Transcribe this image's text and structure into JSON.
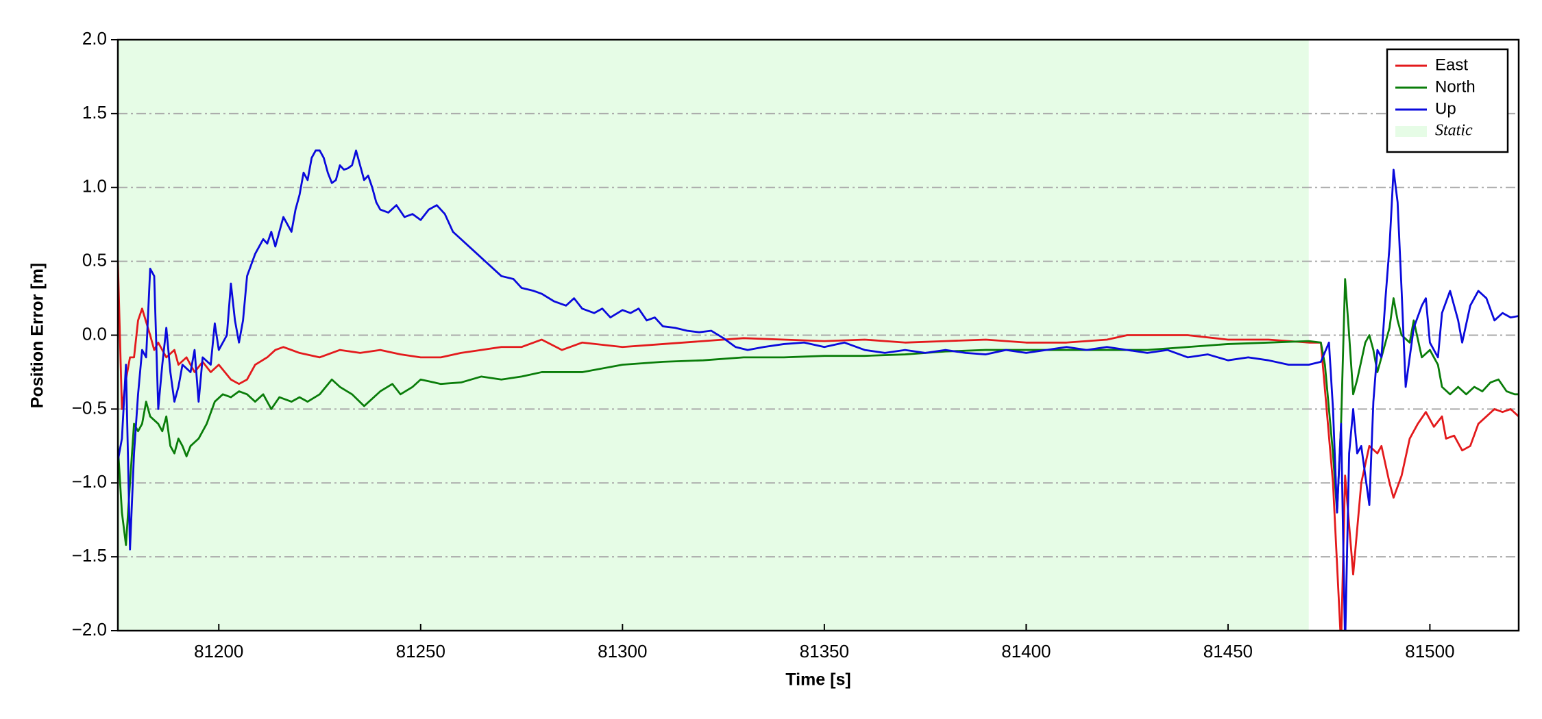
{
  "chart_data": {
    "type": "line",
    "x_label": "Time [s]",
    "y_label": "Position Error [m]",
    "xlim": [
      81175,
      81522
    ],
    "ylim": [
      -2,
      2
    ],
    "xticks": [
      81200,
      81250,
      81300,
      81350,
      81400,
      81450,
      81500
    ],
    "yticks": [
      {
        "value": -2,
        "label": "−2.0"
      },
      {
        "value": -1.5,
        "label": "−1.5"
      },
      {
        "value": -1,
        "label": "−1.0"
      },
      {
        "value": -0.5,
        "label": "−0.5"
      },
      {
        "value": 0,
        "label": "0.0"
      },
      0.5,
      {
        "value": 1,
        "label": "1.0"
      },
      1.5,
      {
        "value": 2,
        "label": "2.0"
      }
    ],
    "grid": true,
    "legend": "upper right",
    "span": {
      "name": "Static",
      "color": "#e6fce6",
      "x": [
        81175,
        81470
      ]
    },
    "series": [
      {
        "name": "East",
        "color": "#e31a1c",
        "x": [
          81175,
          81176,
          81177,
          81178,
          81179,
          81180,
          81181,
          81183,
          81184,
          81185,
          81187,
          81189,
          81190,
          81192,
          81194,
          81196,
          81198,
          81200,
          81203,
          81205,
          81207,
          81209,
          81212,
          81214,
          81216,
          81220,
          81225,
          81230,
          81235,
          81240,
          81245,
          81250,
          81255,
          81260,
          81265,
          81270,
          81275,
          81280,
          81285,
          81290,
          81300,
          81310,
          81320,
          81330,
          81340,
          81350,
          81360,
          81370,
          81380,
          81390,
          81400,
          81410,
          81420,
          81425,
          81430,
          81440,
          81450,
          81460,
          81470,
          81473,
          81476,
          81478,
          81479,
          81481,
          81483,
          81485,
          81487,
          81488,
          81490,
          81491,
          81493,
          81495,
          81497,
          81499,
          81501,
          81503,
          81504,
          81506,
          81508,
          81510,
          81512,
          81514,
          81516,
          81518,
          81520,
          81522
        ],
        "values": [
          0.5,
          -0.5,
          -0.3,
          -0.15,
          -0.15,
          0.1,
          0.18,
          0.0,
          -0.1,
          -0.05,
          -0.15,
          -0.1,
          -0.2,
          -0.15,
          -0.25,
          -0.18,
          -0.25,
          -0.2,
          -0.3,
          -0.33,
          -0.3,
          -0.2,
          -0.15,
          -0.1,
          -0.08,
          -0.12,
          -0.15,
          -0.1,
          -0.12,
          -0.1,
          -0.13,
          -0.15,
          -0.15,
          -0.12,
          -0.1,
          -0.08,
          -0.08,
          -0.03,
          -0.1,
          -0.05,
          -0.08,
          -0.06,
          -0.04,
          -0.02,
          -0.03,
          -0.04,
          -0.03,
          -0.05,
          -0.04,
          -0.03,
          -0.05,
          -0.05,
          -0.03,
          0.0,
          0.0,
          0.0,
          -0.03,
          -0.03,
          -0.05,
          -0.05,
          -1.0,
          -2.1,
          -0.95,
          -1.62,
          -1.0,
          -0.75,
          -0.8,
          -0.75,
          -1.0,
          -1.1,
          -0.95,
          -0.7,
          -0.6,
          -0.52,
          -0.62,
          -0.55,
          -0.7,
          -0.68,
          -0.78,
          -0.75,
          -0.6,
          -0.55,
          -0.5,
          -0.52,
          -0.5,
          -0.55
        ]
      },
      {
        "name": "North",
        "color": "#0a7d0a",
        "x": [
          81175,
          81176,
          81177,
          81178,
          81179,
          81180,
          81181,
          81182,
          81183,
          81185,
          81186,
          81187,
          81188,
          81189,
          81190,
          81191,
          81192,
          81193,
          81195,
          81197,
          81199,
          81201,
          81203,
          81205,
          81207,
          81209,
          81211,
          81213,
          81215,
          81218,
          81220,
          81222,
          81225,
          81228,
          81230,
          81233,
          81236,
          81240,
          81243,
          81245,
          81248,
          81250,
          81255,
          81260,
          81265,
          81270,
          81275,
          81280,
          81290,
          81300,
          81310,
          81320,
          81330,
          81340,
          81350,
          81360,
          81370,
          81380,
          81390,
          81400,
          81410,
          81420,
          81430,
          81440,
          81450,
          81460,
          81470,
          81473,
          81474,
          81476,
          81477,
          81478,
          81479,
          81480,
          81481,
          81482,
          81484,
          81485,
          81486,
          81487,
          81488,
          81490,
          81491,
          81492,
          81493,
          81495,
          81496,
          81498,
          81500,
          81502,
          81503,
          81505,
          81507,
          81509,
          81511,
          81513,
          81515,
          81517,
          81519,
          81521,
          81522
        ],
        "values": [
          -0.75,
          -1.2,
          -1.42,
          -1.0,
          -0.6,
          -0.65,
          -0.6,
          -0.45,
          -0.55,
          -0.6,
          -0.65,
          -0.55,
          -0.75,
          -0.8,
          -0.7,
          -0.75,
          -0.82,
          -0.75,
          -0.7,
          -0.6,
          -0.45,
          -0.4,
          -0.42,
          -0.38,
          -0.4,
          -0.45,
          -0.4,
          -0.5,
          -0.42,
          -0.45,
          -0.42,
          -0.45,
          -0.4,
          -0.3,
          -0.35,
          -0.4,
          -0.48,
          -0.38,
          -0.33,
          -0.4,
          -0.35,
          -0.3,
          -0.33,
          -0.32,
          -0.28,
          -0.3,
          -0.28,
          -0.25,
          -0.25,
          -0.2,
          -0.18,
          -0.17,
          -0.15,
          -0.15,
          -0.14,
          -0.14,
          -0.13,
          -0.11,
          -0.1,
          -0.1,
          -0.1,
          -0.1,
          -0.1,
          -0.08,
          -0.06,
          -0.05,
          -0.04,
          -0.05,
          -0.2,
          -0.8,
          -1.2,
          -0.6,
          0.38,
          0.0,
          -0.4,
          -0.3,
          -0.05,
          0.0,
          -0.1,
          -0.25,
          -0.15,
          0.05,
          0.25,
          0.1,
          0.0,
          -0.05,
          0.1,
          -0.15,
          -0.1,
          -0.2,
          -0.35,
          -0.4,
          -0.35,
          -0.4,
          -0.35,
          -0.38,
          -0.32,
          -0.3,
          -0.38,
          -0.4,
          -0.4
        ]
      },
      {
        "name": "Up",
        "color": "#0a0adc",
        "x": [
          81175,
          81176,
          81177,
          81178,
          81179,
          81180,
          81181,
          81182,
          81183,
          81184,
          81185,
          81186,
          81187,
          81188,
          81189,
          81190,
          81191,
          81193,
          81194,
          81195,
          81196,
          81198,
          81199,
          81200,
          81202,
          81203,
          81204,
          81205,
          81206,
          81207,
          81209,
          81211,
          81212,
          81213,
          81214,
          81216,
          81218,
          81219,
          81220,
          81221,
          81222,
          81223,
          81224,
          81225,
          81226,
          81227,
          81228,
          81229,
          81230,
          81231,
          81232,
          81233,
          81234,
          81235,
          81236,
          81237,
          81238,
          81239,
          81240,
          81242,
          81244,
          81246,
          81248,
          81250,
          81252,
          81254,
          81256,
          81258,
          81260,
          81262,
          81264,
          81266,
          81268,
          81270,
          81273,
          81275,
          81278,
          81280,
          81283,
          81286,
          81288,
          81290,
          81293,
          81295,
          81297,
          81300,
          81302,
          81304,
          81306,
          81308,
          81310,
          81313,
          81316,
          81319,
          81322,
          81325,
          81328,
          81331,
          81335,
          81340,
          81345,
          81350,
          81355,
          81360,
          81365,
          81370,
          81375,
          81380,
          81385,
          81390,
          81395,
          81400,
          81405,
          81410,
          81415,
          81420,
          81425,
          81430,
          81435,
          81440,
          81445,
          81450,
          81455,
          81460,
          81465,
          81470,
          81473,
          81475,
          81476,
          81477,
          81478,
          81479,
          81480,
          81481,
          81482,
          81483,
          81484,
          81485,
          81486,
          81487,
          81488,
          81489,
          81490,
          81491,
          81492,
          81493,
          81494,
          81495,
          81496,
          81498,
          81499,
          81500,
          81502,
          81503,
          81505,
          81507,
          81508,
          81510,
          81512,
          81514,
          81516,
          81518,
          81520,
          81522
        ],
        "values": [
          -0.85,
          -0.7,
          -0.2,
          -1.45,
          -0.8,
          -0.4,
          -0.1,
          -0.15,
          0.45,
          0.4,
          -0.5,
          -0.2,
          0.05,
          -0.25,
          -0.45,
          -0.35,
          -0.2,
          -0.25,
          -0.1,
          -0.45,
          -0.15,
          -0.2,
          0.08,
          -0.1,
          0.0,
          0.35,
          0.1,
          -0.05,
          0.1,
          0.4,
          0.55,
          0.65,
          0.62,
          0.7,
          0.6,
          0.8,
          0.7,
          0.85,
          0.95,
          1.1,
          1.05,
          1.2,
          1.25,
          1.25,
          1.2,
          1.1,
          1.03,
          1.05,
          1.15,
          1.12,
          1.13,
          1.15,
          1.25,
          1.15,
          1.05,
          1.08,
          1.0,
          0.9,
          0.85,
          0.83,
          0.88,
          0.8,
          0.82,
          0.78,
          0.85,
          0.88,
          0.82,
          0.7,
          0.65,
          0.6,
          0.55,
          0.5,
          0.45,
          0.4,
          0.38,
          0.32,
          0.3,
          0.28,
          0.23,
          0.2,
          0.25,
          0.18,
          0.15,
          0.18,
          0.12,
          0.17,
          0.15,
          0.18,
          0.1,
          0.12,
          0.06,
          0.05,
          0.03,
          0.02,
          0.03,
          -0.02,
          -0.08,
          -0.1,
          -0.08,
          -0.06,
          -0.05,
          -0.08,
          -0.05,
          -0.1,
          -0.12,
          -0.1,
          -0.12,
          -0.1,
          -0.12,
          -0.13,
          -0.1,
          -0.12,
          -0.1,
          -0.08,
          -0.1,
          -0.08,
          -0.1,
          -0.12,
          -0.1,
          -0.15,
          -0.13,
          -0.17,
          -0.15,
          -0.17,
          -0.2,
          -0.2,
          -0.18,
          -0.05,
          -0.5,
          -1.2,
          -0.6,
          -2.1,
          -0.8,
          -0.5,
          -0.8,
          -0.75,
          -0.95,
          -1.15,
          -0.45,
          -0.1,
          -0.15,
          0.25,
          0.6,
          1.12,
          0.9,
          0.3,
          -0.35,
          -0.15,
          0.05,
          0.2,
          0.25,
          -0.05,
          -0.15,
          0.15,
          0.3,
          0.1,
          -0.05,
          0.2,
          0.3,
          0.25,
          0.1,
          0.15,
          0.12,
          0.13
        ]
      }
    ]
  }
}
